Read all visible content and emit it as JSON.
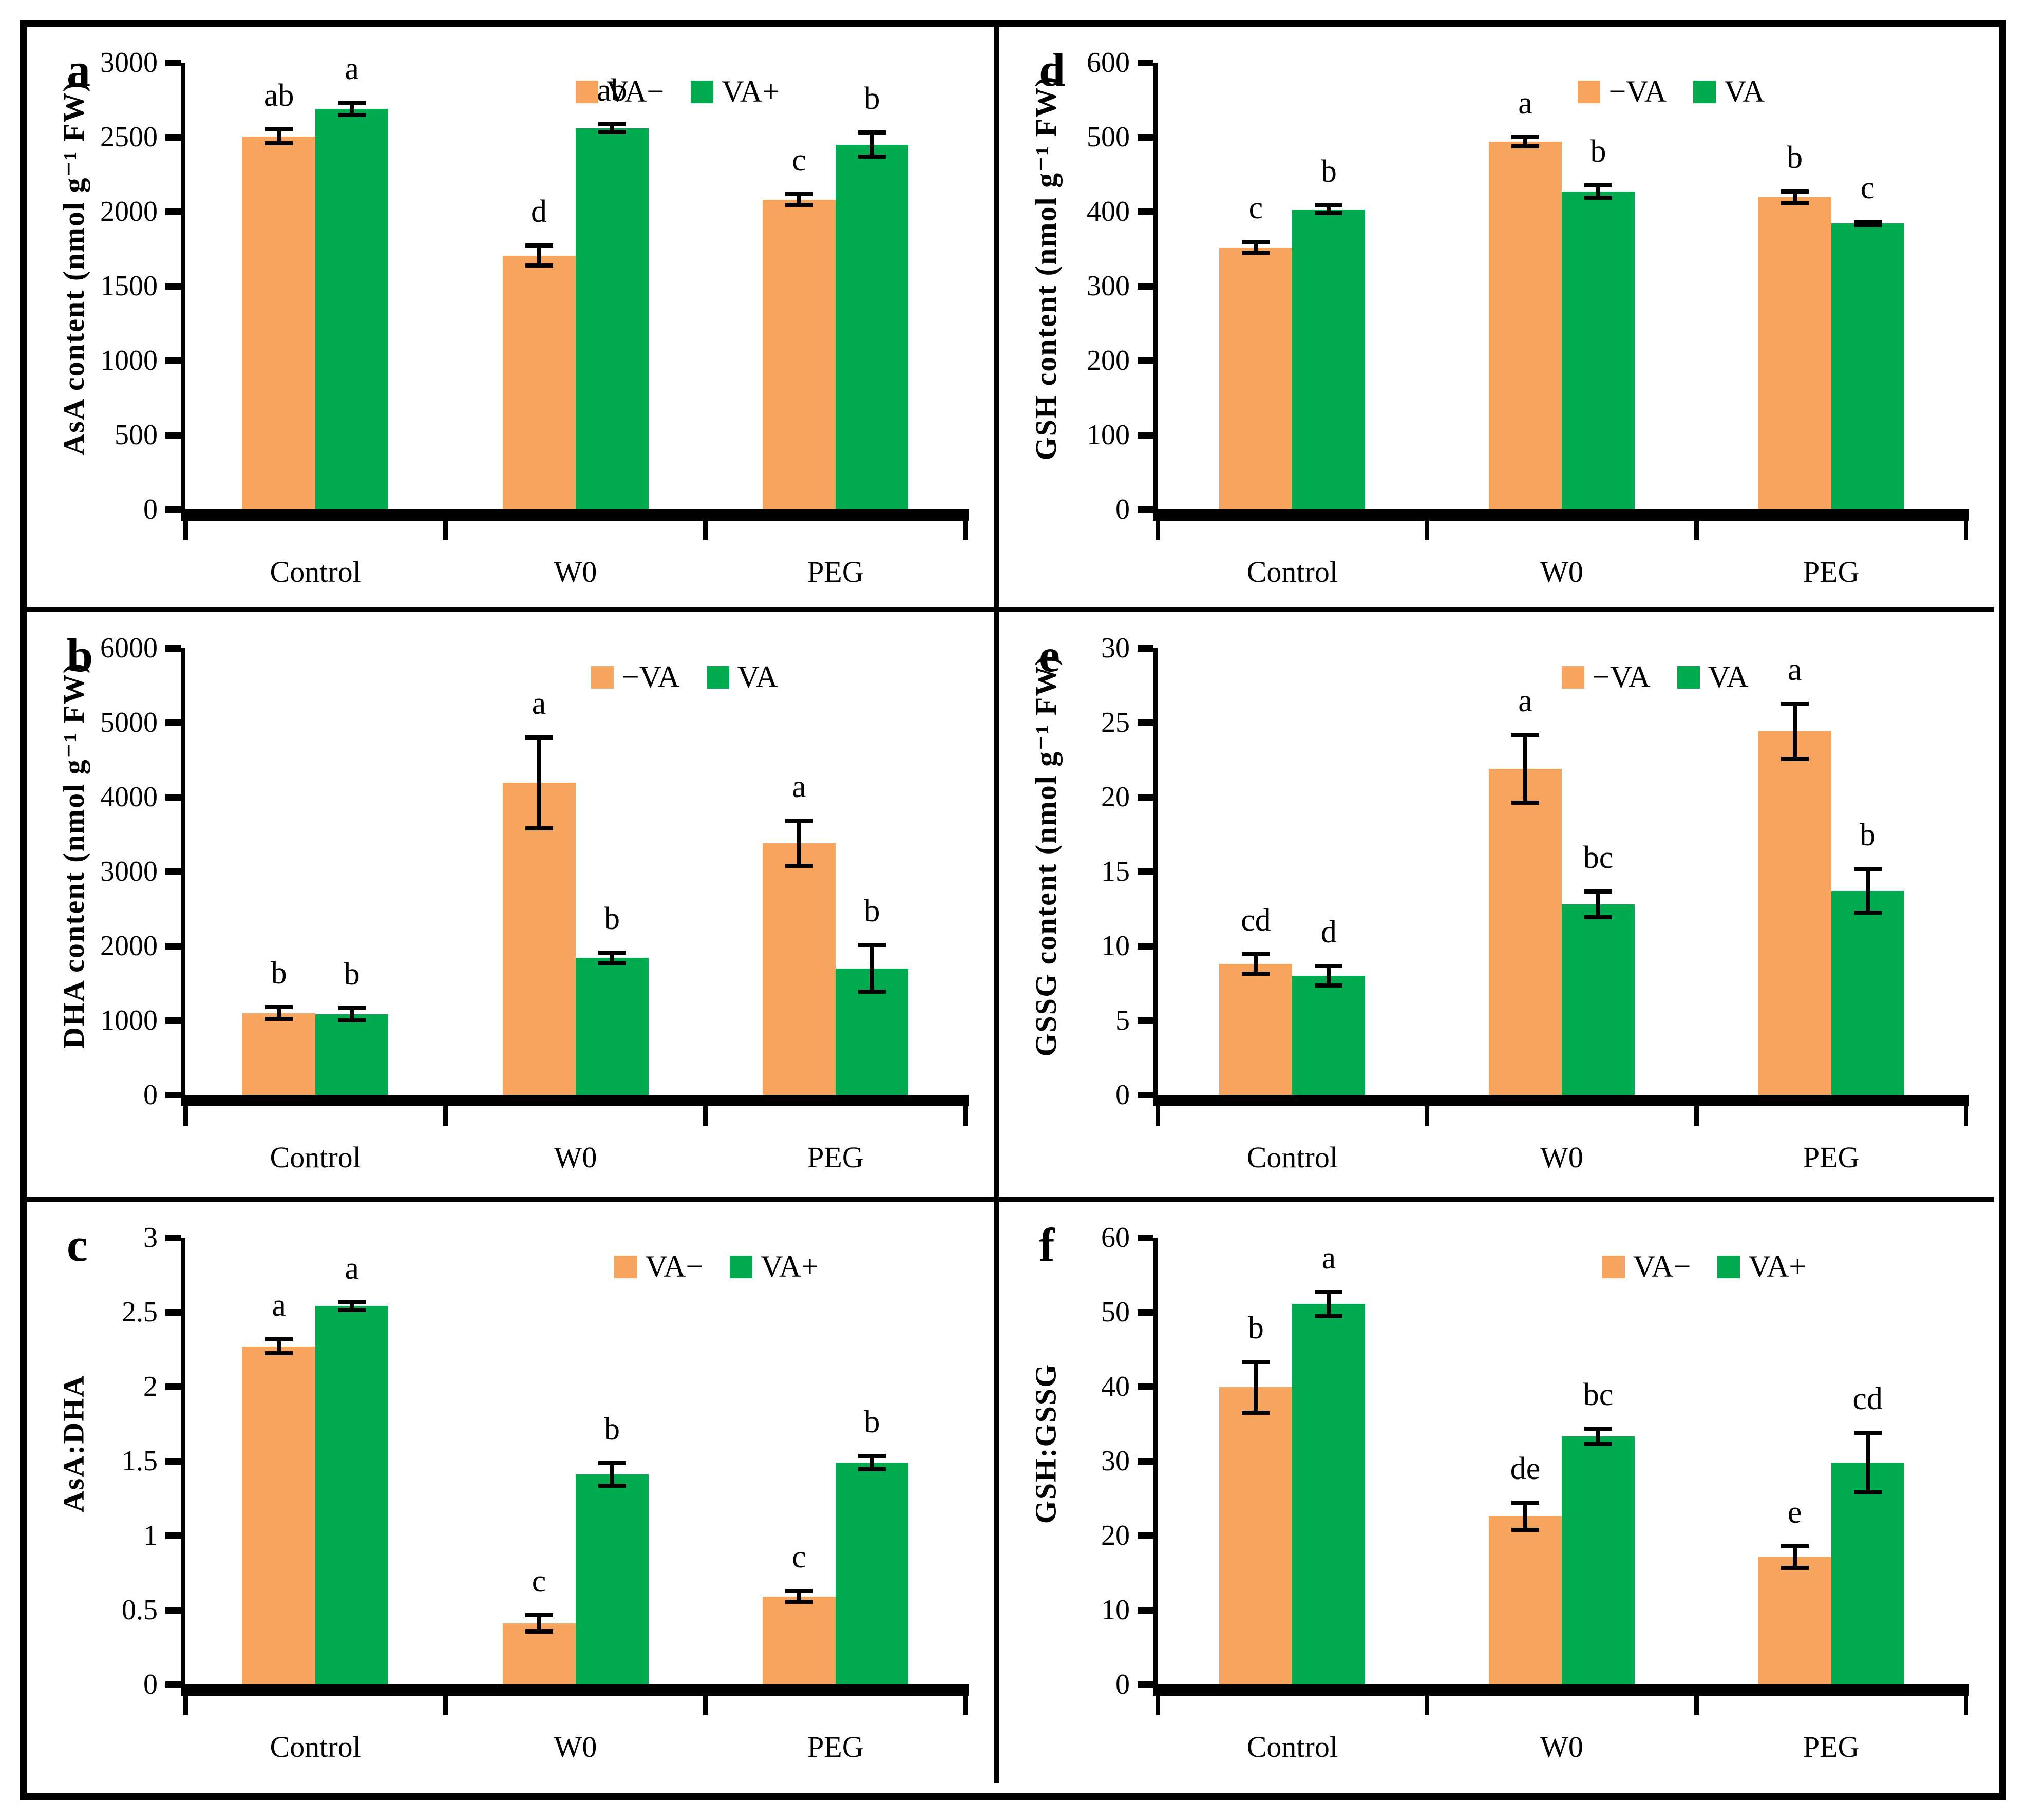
{
  "figure": {
    "panel_letters": [
      "a",
      "b",
      "c",
      "d",
      "e",
      "f"
    ],
    "colors": {
      "va_minus_orange": "#F6A45E",
      "va_plus_green": "#00AB4F",
      "axis_black": "#000000"
    }
  },
  "chart_data": [
    {
      "type": "bar",
      "panel_label": "a",
      "title": "",
      "xlabel": "",
      "ylabel": "AsA content (nmol g⁻¹ FW)",
      "ylim": [
        0,
        3000
      ],
      "ystep": 500,
      "grid": false,
      "categories": [
        "Control",
        "W0",
        "PEG"
      ],
      "legend_position": "top-inside",
      "legend": [
        "VA−",
        "VA+"
      ],
      "series": [
        {
          "name": "VA−",
          "color_key": "va_minus_orange",
          "values": [
            2505,
            1705,
            2080
          ],
          "errors": [
            60,
            80,
            50
          ],
          "letters": [
            "ab",
            "d",
            "c"
          ]
        },
        {
          "name": "VA+",
          "color_key": "va_plus_green",
          "values": [
            2690,
            2560,
            2450
          ],
          "errors": [
            55,
            40,
            95
          ],
          "letters": [
            "a",
            "ab",
            "b"
          ]
        }
      ]
    },
    {
      "type": "bar",
      "panel_label": "b",
      "title": "",
      "xlabel": "",
      "ylabel": "DHA content (nmol g⁻¹ FW)",
      "ylim": [
        0,
        6000
      ],
      "ystep": 1000,
      "grid": false,
      "categories": [
        "Control",
        "W0",
        "PEG"
      ],
      "legend_position": "top-inside",
      "legend": [
        "−VA",
        "VA"
      ],
      "series": [
        {
          "name": "−VA",
          "color_key": "va_minus_orange",
          "values": [
            1100,
            4190,
            3380
          ],
          "errors": [
            110,
            640,
            330
          ],
          "letters": [
            "b",
            "a",
            "a"
          ]
        },
        {
          "name": "VA",
          "color_key": "va_plus_green",
          "values": [
            1080,
            1840,
            1700
          ],
          "errors": [
            110,
            100,
            340
          ],
          "letters": [
            "b",
            "b",
            "b"
          ]
        }
      ]
    },
    {
      "type": "bar",
      "panel_label": "c",
      "title": "",
      "xlabel": "",
      "ylabel": "AsA:DHA",
      "ylim": [
        0,
        3
      ],
      "ystep": 0.5,
      "grid": false,
      "categories": [
        "Control",
        "W0",
        "PEG"
      ],
      "legend_position": "top-inside",
      "legend": [
        "VA−",
        "VA+"
      ],
      "series": [
        {
          "name": "VA−",
          "color_key": "va_minus_orange",
          "values": [
            2.27,
            0.41,
            0.59
          ],
          "errors": [
            0.06,
            0.07,
            0.05
          ],
          "letters": [
            "a",
            "c",
            "c"
          ]
        },
        {
          "name": "VA+",
          "color_key": "va_plus_green",
          "values": [
            2.54,
            1.41,
            1.49
          ],
          "errors": [
            0.04,
            0.09,
            0.06
          ],
          "letters": [
            "a",
            "b",
            "b"
          ]
        }
      ]
    },
    {
      "type": "bar",
      "panel_label": "d",
      "title": "",
      "xlabel": "",
      "ylabel": "GSH content (nmol g⁻¹ FW)",
      "ylim": [
        0,
        600
      ],
      "ystep": 100,
      "grid": false,
      "categories": [
        "Control",
        "W0",
        "PEG"
      ],
      "legend_position": "top-inside",
      "legend": [
        "−VA",
        "VA"
      ],
      "series": [
        {
          "name": "−VA",
          "color_key": "va_minus_orange",
          "values": [
            352,
            494,
            419
          ],
          "errors": [
            10,
            9,
            11
          ],
          "letters": [
            "c",
            "a",
            "b"
          ]
        },
        {
          "name": "VA",
          "color_key": "va_plus_green",
          "values": [
            403,
            427,
            384
          ],
          "errors": [
            8,
            11,
            5
          ],
          "letters": [
            "b",
            "b",
            "c"
          ]
        }
      ]
    },
    {
      "type": "bar",
      "panel_label": "e",
      "title": "",
      "xlabel": "",
      "ylabel": "GSSG content (nmol g⁻¹ FW)",
      "ylim": [
        0,
        30
      ],
      "ystep": 5,
      "grid": false,
      "categories": [
        "Control",
        "W0",
        "PEG"
      ],
      "legend_position": "top-inside",
      "legend": [
        "−VA",
        "VA"
      ],
      "series": [
        {
          "name": "−VA",
          "color_key": "va_minus_orange",
          "values": [
            8.8,
            21.9,
            24.4
          ],
          "errors": [
            0.8,
            2.4,
            2.0
          ],
          "letters": [
            "cd",
            "a",
            "a"
          ]
        },
        {
          "name": "VA",
          "color_key": "va_plus_green",
          "values": [
            8.0,
            12.8,
            13.7
          ],
          "errors": [
            0.8,
            1.0,
            1.6
          ],
          "letters": [
            "d",
            "bc",
            "b"
          ]
        }
      ]
    },
    {
      "type": "bar",
      "panel_label": "f",
      "title": "",
      "xlabel": "",
      "ylabel": "GSH:GSSG",
      "ylim": [
        0,
        60
      ],
      "ystep": 10,
      "grid": false,
      "categories": [
        "Control",
        "W0",
        "PEG"
      ],
      "legend_position": "top-inside",
      "legend": [
        "VA−",
        "VA+"
      ],
      "series": [
        {
          "name": "VA−",
          "color_key": "va_minus_orange",
          "values": [
            39.9,
            22.6,
            17.1
          ],
          "errors": [
            3.7,
            2.1,
            1.7
          ],
          "letters": [
            "b",
            "de",
            "e"
          ]
        },
        {
          "name": "VA+",
          "color_key": "va_plus_green",
          "values": [
            51.1,
            33.3,
            29.8
          ],
          "errors": [
            1.9,
            1.3,
            4.3
          ],
          "letters": [
            "a",
            "bc",
            "cd"
          ]
        }
      ]
    }
  ]
}
